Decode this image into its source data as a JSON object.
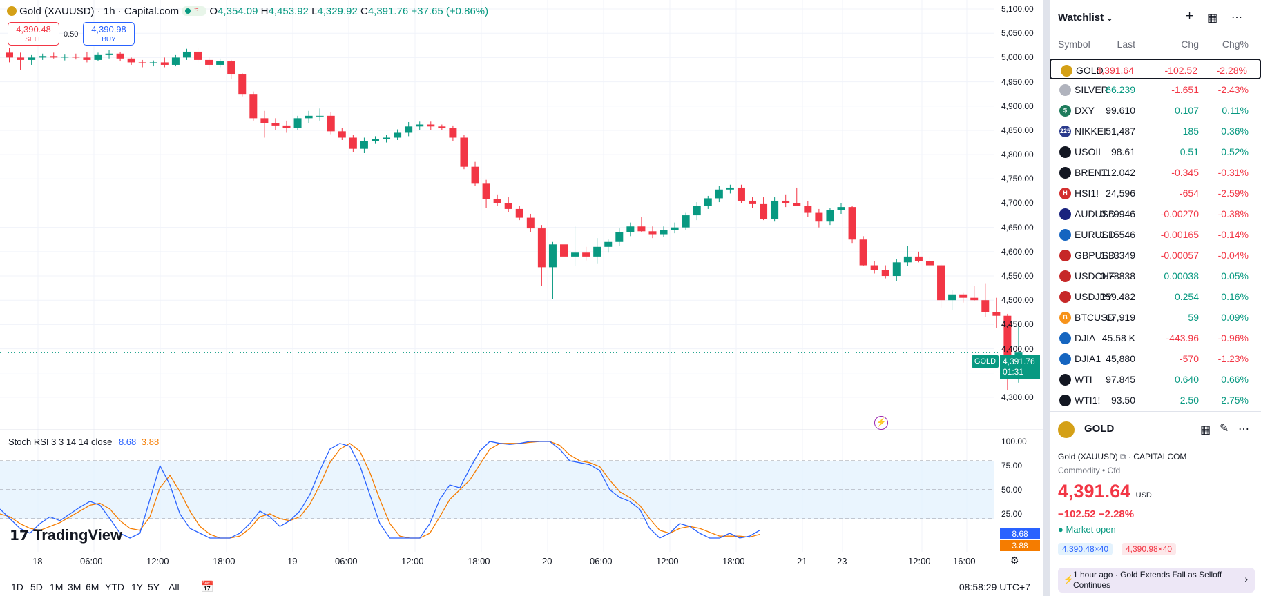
{
  "legend": {
    "symbol": "Gold (XAUUSD) · 1h · Capital.com",
    "open_key": "O",
    "open": "4,354.09",
    "high_key": "H",
    "high": "4,453.92",
    "low_key": "L",
    "low": "4,329.92",
    "close_key": "C",
    "close": "4,391.76",
    "change": "+37.65 (+0.86%)"
  },
  "trade": {
    "sell_price": "4,390.48",
    "sell_label": "SELL",
    "spread": "0.50",
    "buy_price": "4,390.98",
    "buy_label": "BUY"
  },
  "price_axis": [
    "5,100.00",
    "5,050.00",
    "5,000.00",
    "4,950.00",
    "4,900.00",
    "4,850.00",
    "4,800.00",
    "4,750.00",
    "4,700.00",
    "4,650.00",
    "4,600.00",
    "4,550.00",
    "4,500.00",
    "4,450.00",
    "4,400.00",
    "4,350.00",
    "4,300.00"
  ],
  "price_marker": {
    "symbol": "GOLD",
    "price": "4,391.76",
    "countdown": "01:31"
  },
  "stoch": {
    "title": "Stoch RSI 3 3 14 14 close",
    "k": "8.68",
    "d": "3.88",
    "axis": [
      "100.00",
      "75.00",
      "50.00",
      "25.00"
    ],
    "k_color": "#2962ff",
    "d_color": "#f57c00"
  },
  "watermark": "TradingView",
  "time_axis": [
    "18",
    "06:00",
    "12:00",
    "18:00",
    "19",
    "06:00",
    "12:00",
    "18:00",
    "20",
    "06:00",
    "12:00",
    "18:00",
    "21",
    "23",
    "12:00",
    "16:00"
  ],
  "ranges": [
    "1D",
    "5D",
    "1M",
    "3M",
    "6M",
    "YTD",
    "1Y",
    "5Y",
    "All"
  ],
  "clock": "08:58:29 UTC+7",
  "chart_data": {
    "type": "candlestick",
    "ylim": [
      4280,
      5110
    ],
    "candles": [
      [
        5010,
        5020,
        4990,
        5000
      ],
      [
        5000,
        5010,
        4975,
        4995
      ],
      [
        4995,
        5005,
        4985,
        5000
      ],
      [
        5000,
        5008,
        4995,
        5003
      ],
      [
        5003,
        5010,
        4998,
        5000
      ],
      [
        5000,
        5006,
        4994,
        5002
      ],
      [
        5002,
        5008,
        4996,
        5000
      ],
      [
        5000,
        5012,
        4990,
        4995
      ],
      [
        4995,
        5010,
        4992,
        5005
      ],
      [
        5005,
        5015,
        4998,
        5008
      ],
      [
        5008,
        5012,
        4992,
        4998
      ],
      [
        4998,
        5000,
        4985,
        4990
      ],
      [
        4990,
        4995,
        4980,
        4988
      ],
      [
        4988,
        4994,
        4982,
        4990
      ],
      [
        4990,
        5000,
        4980,
        4985
      ],
      [
        4985,
        5005,
        4982,
        5000
      ],
      [
        5000,
        5018,
        4995,
        5012
      ],
      [
        5012,
        5020,
        4990,
        4995
      ],
      [
        4995,
        5000,
        4975,
        4985
      ],
      [
        4985,
        4998,
        4980,
        4992
      ],
      [
        4992,
        4995,
        4955,
        4965
      ],
      [
        4965,
        4968,
        4920,
        4925
      ],
      [
        4925,
        4930,
        4870,
        4875
      ],
      [
        4875,
        4890,
        4835,
        4865
      ],
      [
        4865,
        4875,
        4850,
        4860
      ],
      [
        4860,
        4870,
        4845,
        4855
      ],
      [
        4855,
        4880,
        4850,
        4875
      ],
      [
        4875,
        4890,
        4865,
        4880
      ],
      [
        4880,
        4895,
        4870,
        4880
      ],
      [
        4880,
        4888,
        4842,
        4848
      ],
      [
        4848,
        4855,
        4830,
        4835
      ],
      [
        4835,
        4840,
        4805,
        4812
      ],
      [
        4812,
        4835,
        4803,
        4828
      ],
      [
        4828,
        4838,
        4822,
        4832
      ],
      [
        4832,
        4840,
        4825,
        4835
      ],
      [
        4835,
        4852,
        4830,
        4845
      ],
      [
        4845,
        4867,
        4838,
        4858
      ],
      [
        4858,
        4868,
        4850,
        4862
      ],
      [
        4862,
        4868,
        4850,
        4858
      ],
      [
        4858,
        4862,
        4850,
        4855
      ],
      [
        4855,
        4860,
        4828,
        4835
      ],
      [
        4835,
        4840,
        4770,
        4775
      ],
      [
        4775,
        4785,
        4735,
        4740
      ],
      [
        4740,
        4748,
        4690,
        4708
      ],
      [
        4708,
        4718,
        4695,
        4700
      ],
      [
        4700,
        4712,
        4682,
        4688
      ],
      [
        4688,
        4695,
        4665,
        4670
      ],
      [
        4670,
        4678,
        4640,
        4648
      ],
      [
        4648,
        4655,
        4530,
        4568
      ],
      [
        4568,
        4620,
        4502,
        4615
      ],
      [
        4615,
        4630,
        4570,
        4590
      ],
      [
        4590,
        4652,
        4570,
        4598
      ],
      [
        4598,
        4610,
        4582,
        4590
      ],
      [
        4590,
        4628,
        4576,
        4610
      ],
      [
        4610,
        4625,
        4598,
        4620
      ],
      [
        4620,
        4648,
        4612,
        4640
      ],
      [
        4640,
        4660,
        4632,
        4652
      ],
      [
        4652,
        4672,
        4640,
        4642
      ],
      [
        4642,
        4652,
        4628,
        4636
      ],
      [
        4636,
        4652,
        4630,
        4645
      ],
      [
        4645,
        4660,
        4638,
        4650
      ],
      [
        4650,
        4680,
        4645,
        4675
      ],
      [
        4675,
        4702,
        4665,
        4695
      ],
      [
        4695,
        4715,
        4688,
        4710
      ],
      [
        4710,
        4735,
        4702,
        4728
      ],
      [
        4728,
        4738,
        4720,
        4732
      ],
      [
        4732,
        4738,
        4700,
        4705
      ],
      [
        4705,
        4712,
        4690,
        4698
      ],
      [
        4698,
        4712,
        4665,
        4668
      ],
      [
        4668,
        4712,
        4662,
        4705
      ],
      [
        4705,
        4718,
        4692,
        4700
      ],
      [
        4700,
        4732,
        4698,
        4695
      ],
      [
        4695,
        4705,
        4672,
        4680
      ],
      [
        4680,
        4688,
        4650,
        4662
      ],
      [
        4662,
        4690,
        4655,
        4686
      ],
      [
        4686,
        4700,
        4678,
        4692
      ],
      [
        4692,
        4695,
        4618,
        4625
      ],
      [
        4625,
        4632,
        4570,
        4572
      ],
      [
        4572,
        4580,
        4555,
        4562
      ],
      [
        4562,
        4572,
        4545,
        4550
      ],
      [
        4550,
        4585,
        4540,
        4578
      ],
      [
        4578,
        4612,
        4570,
        4590
      ],
      [
        4590,
        4600,
        4578,
        4580
      ],
      [
        4580,
        4590,
        4565,
        4572
      ],
      [
        4572,
        4575,
        4485,
        4500
      ],
      [
        4500,
        4520,
        4480,
        4512
      ],
      [
        4512,
        4515,
        4495,
        4505
      ],
      [
        4505,
        4530,
        4498,
        4500
      ],
      [
        4500,
        4535,
        4465,
        4475
      ],
      [
        4475,
        4505,
        4442,
        4468
      ],
      [
        4468,
        4472,
        4315,
        4365
      ],
      [
        4354,
        4454,
        4330,
        4392
      ]
    ]
  },
  "watchlist": {
    "title": "Watchlist",
    "columns": [
      "Symbol",
      "Last",
      "Chg",
      "Chg%"
    ],
    "rows": [
      {
        "sym": "GOLD",
        "last": "4,391.64",
        "chg": "-102.52",
        "pct": "-2.28%",
        "color": "#d4a017",
        "logo": "",
        "up": false,
        "lastRed": true
      },
      {
        "sym": "SILVER",
        "last": "66.239",
        "chg": "-1.651",
        "pct": "-2.43%",
        "color": "#b0b3bd",
        "logo": "",
        "up": false,
        "lastGreen": true
      },
      {
        "sym": "DXY",
        "last": "99.610",
        "chg": "0.107",
        "pct": "0.11%",
        "color": "#1e7b5c",
        "logo": "$",
        "up": true
      },
      {
        "sym": "NIKKEI",
        "last": "51,487",
        "chg": "185",
        "pct": "0.36%",
        "color": "#2a3a8c",
        "logo": "225",
        "up": true
      },
      {
        "sym": "USOIL",
        "last": "98.61",
        "chg": "0.51",
        "pct": "0.52%",
        "color": "#131722",
        "logo": "",
        "up": true
      },
      {
        "sym": "BRENT",
        "last": "112.042",
        "chg": "-0.345",
        "pct": "-0.31%",
        "color": "#131722",
        "logo": "",
        "up": false
      },
      {
        "sym": "HSI1!",
        "last": "24,596",
        "chg": "-654",
        "pct": "-2.59%",
        "color": "#d32f2f",
        "logo": "H",
        "up": false
      },
      {
        "sym": "AUDUSD",
        "last": "0.69946",
        "chg": "-0.00270",
        "pct": "-0.38%",
        "color": "#1a237e",
        "logo": "",
        "up": false
      },
      {
        "sym": "EURUSD",
        "last": "1.15546",
        "chg": "-0.00165",
        "pct": "-0.14%",
        "color": "#1565c0",
        "logo": "",
        "up": false
      },
      {
        "sym": "GBPUSD",
        "last": "1.33349",
        "chg": "-0.00057",
        "pct": "-0.04%",
        "color": "#c62828",
        "logo": "",
        "up": false
      },
      {
        "sym": "USDCHF",
        "last": "0.78838",
        "chg": "0.00038",
        "pct": "0.05%",
        "color": "#c62828",
        "logo": "",
        "up": true
      },
      {
        "sym": "USDJPY",
        "last": "159.482",
        "chg": "0.254",
        "pct": "0.16%",
        "color": "#c62828",
        "logo": "",
        "up": true
      },
      {
        "sym": "BTCUSD",
        "last": "67,919",
        "chg": "59",
        "pct": "0.09%",
        "color": "#f7931a",
        "logo": "B",
        "up": true
      },
      {
        "sym": "DJIA",
        "last": "45.58 K",
        "chg": "-443.96",
        "pct": "-0.96%",
        "color": "#1565c0",
        "logo": "",
        "up": false
      },
      {
        "sym": "DJIA1",
        "last": "45,880",
        "chg": "-570",
        "pct": "-1.23%",
        "color": "#1565c0",
        "logo": "",
        "up": false
      },
      {
        "sym": "WTI",
        "last": "97.845",
        "chg": "0.640",
        "pct": "0.66%",
        "color": "#131722",
        "logo": "",
        "up": true
      },
      {
        "sym": "WTI1!",
        "last": "93.50",
        "chg": "2.50",
        "pct": "2.75%",
        "color": "#131722",
        "logo": "",
        "up": true
      }
    ]
  },
  "detail": {
    "symbol": "GOLD",
    "full_name": "Gold (XAUUSD)",
    "exchange": "· CAPITALCOM",
    "category": "Commodity • Cfd",
    "price": "4,391.64",
    "currency": "USD",
    "change": "−102.52  −2.28%",
    "status": "Market open",
    "bid": "4,390.48×40",
    "ask": "4,390.98×40",
    "news_time": "1 hour ago",
    "news_headline": "Gold Extends Fall as Selloff Continues"
  }
}
